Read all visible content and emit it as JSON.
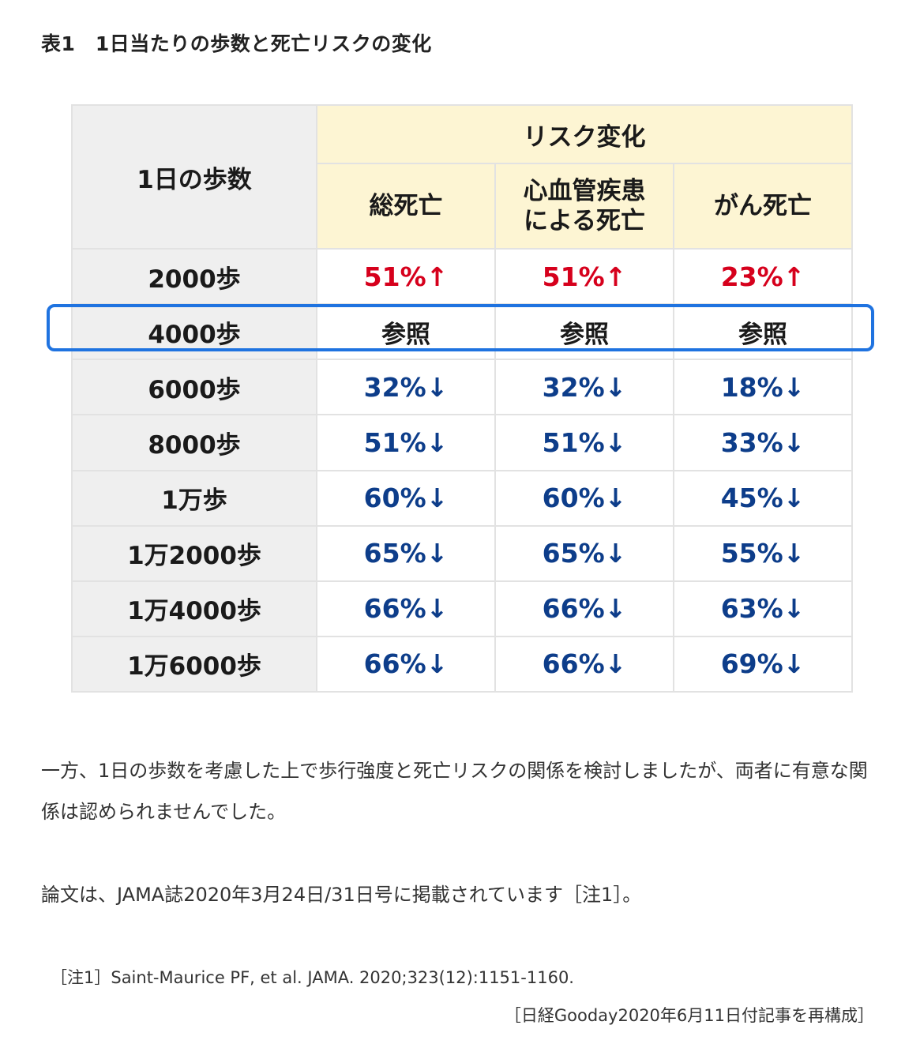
{
  "caption": "表1　1日当たりの歩数と死亡リスクの変化",
  "table": {
    "steps_header": "1日の歩数",
    "risk_header": "リスク変化",
    "columns": [
      "総死亡",
      "心血管疾患\nによる死亡",
      "がん死亡"
    ],
    "rows": [
      {
        "steps": "2000歩",
        "values": [
          "51%↑",
          "51%↑",
          "23%↑"
        ],
        "direction": "up"
      },
      {
        "steps": "4000歩",
        "values": [
          "参照",
          "参照",
          "参照"
        ],
        "direction": "ref"
      },
      {
        "steps": "6000歩",
        "values": [
          "32%↓",
          "32%↓",
          "18%↓"
        ],
        "direction": "down"
      },
      {
        "steps": "8000歩",
        "values": [
          "51%↓",
          "51%↓",
          "33%↓"
        ],
        "direction": "down"
      },
      {
        "steps": "1万歩",
        "values": [
          "60%↓",
          "60%↓",
          "45%↓"
        ],
        "direction": "down"
      },
      {
        "steps": "1万2000歩",
        "values": [
          "65%↓",
          "65%↓",
          "55%↓"
        ],
        "direction": "down"
      },
      {
        "steps": "1万4000歩",
        "values": [
          "66%↓",
          "66%↓",
          "63%↓"
        ],
        "direction": "down"
      },
      {
        "steps": "1万6000歩",
        "values": [
          "66%↓",
          "66%↓",
          "69%↓"
        ],
        "direction": "down"
      }
    ]
  },
  "colors": {
    "increase": "#d6001c",
    "decrease": "#0d3d8a",
    "highlight_border": "#1f73e0",
    "header_yellow": "#fdf5d3",
    "label_gray": "#efefef"
  },
  "paragraphs": [
    "一方、1日の歩数を考慮した上で歩行強度と死亡リスクの関係を検討しましたが、両者に有意な関係は認められませんでした。",
    "論文は、JAMA誌2020年3月24日/31日号に掲載されています［注1］。"
  ],
  "note": "［注1］Saint-Maurice PF, et al. JAMA. 2020;323(12):1151-1160.",
  "source": "［日経Gooday2020年6月11日付記事を再構成］"
}
